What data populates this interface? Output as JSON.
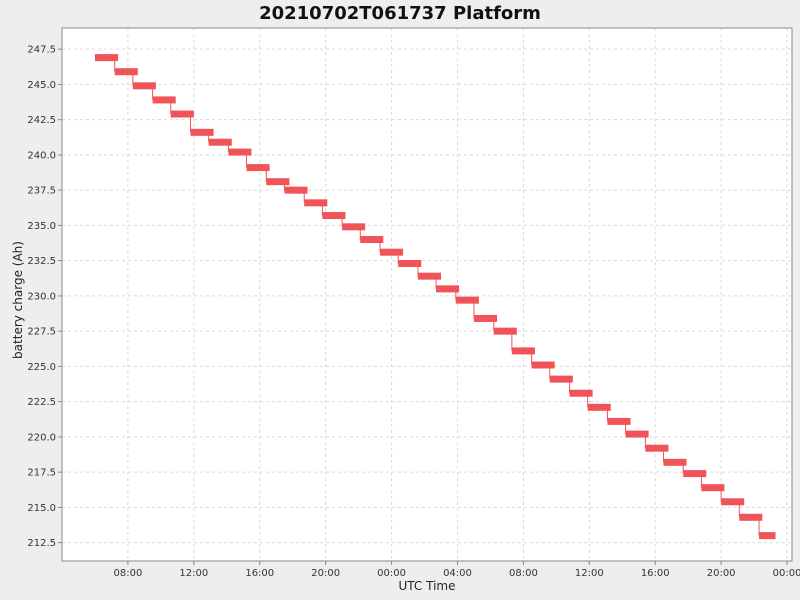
{
  "colors": {
    "page_background": "#eeeeee",
    "plot_background": "#ffffff",
    "grid": "#d9d9d9",
    "series": "#f05458",
    "axis": "#888888"
  },
  "chart_data": {
    "type": "line",
    "title": "20210702T061737 Platform",
    "xlabel": "UTC Time",
    "ylabel": "battery charge (Ah)",
    "grid": true,
    "x_tick_labels": [
      "08:00",
      "12:00",
      "16:00",
      "20:00",
      "00:00",
      "04:00",
      "08:00",
      "12:00",
      "16:00",
      "20:00",
      "00:00"
    ],
    "x_tick_hours": [
      8,
      12,
      16,
      20,
      24,
      28,
      32,
      36,
      40,
      44,
      48
    ],
    "xlim_hours": [
      4,
      48.3
    ],
    "y_ticks": [
      212.5,
      215.0,
      217.5,
      220.0,
      222.5,
      225.0,
      227.5,
      230.0,
      232.5,
      235.0,
      237.5,
      240.0,
      242.5,
      245.0,
      247.5
    ],
    "y_tick_labels": [
      "212.5",
      "215.0",
      "217.5",
      "220.0",
      "222.5",
      "225.0",
      "227.5",
      "230.0",
      "232.5",
      "235.0",
      "237.5",
      "240.0",
      "242.5",
      "245.0",
      "247.5"
    ],
    "ylim": [
      211.2,
      249.0
    ],
    "series": [
      {
        "segments": [
          {
            "start_hours": 6.0,
            "end_hours": 7.4,
            "value": 246.9
          },
          {
            "start_hours": 7.2,
            "end_hours": 8.6,
            "value": 245.9
          },
          {
            "start_hours": 8.3,
            "end_hours": 9.7,
            "value": 244.9
          },
          {
            "start_hours": 9.5,
            "end_hours": 10.9,
            "value": 243.9
          },
          {
            "start_hours": 10.6,
            "end_hours": 12.0,
            "value": 242.9
          },
          {
            "start_hours": 11.8,
            "end_hours": 13.2,
            "value": 241.6
          },
          {
            "start_hours": 12.9,
            "end_hours": 14.3,
            "value": 240.9
          },
          {
            "start_hours": 14.1,
            "end_hours": 15.5,
            "value": 240.2
          },
          {
            "start_hours": 15.2,
            "end_hours": 16.6,
            "value": 239.1
          },
          {
            "start_hours": 16.4,
            "end_hours": 17.8,
            "value": 238.1
          },
          {
            "start_hours": 17.5,
            "end_hours": 18.9,
            "value": 237.5
          },
          {
            "start_hours": 18.7,
            "end_hours": 20.1,
            "value": 236.6
          },
          {
            "start_hours": 19.8,
            "end_hours": 21.2,
            "value": 235.7
          },
          {
            "start_hours": 21.0,
            "end_hours": 22.4,
            "value": 234.9
          },
          {
            "start_hours": 22.1,
            "end_hours": 23.5,
            "value": 234.0
          },
          {
            "start_hours": 23.3,
            "end_hours": 24.7,
            "value": 233.1
          },
          {
            "start_hours": 24.4,
            "end_hours": 25.8,
            "value": 232.3
          },
          {
            "start_hours": 25.6,
            "end_hours": 27.0,
            "value": 231.4
          },
          {
            "start_hours": 26.7,
            "end_hours": 28.1,
            "value": 230.5
          },
          {
            "start_hours": 27.9,
            "end_hours": 29.3,
            "value": 229.7
          },
          {
            "start_hours": 29.0,
            "end_hours": 30.4,
            "value": 228.4
          },
          {
            "start_hours": 30.2,
            "end_hours": 31.6,
            "value": 227.5
          },
          {
            "start_hours": 31.3,
            "end_hours": 32.7,
            "value": 226.1
          },
          {
            "start_hours": 32.5,
            "end_hours": 33.9,
            "value": 225.1
          },
          {
            "start_hours": 33.6,
            "end_hours": 35.0,
            "value": 224.1
          },
          {
            "start_hours": 34.8,
            "end_hours": 36.2,
            "value": 223.1
          },
          {
            "start_hours": 35.9,
            "end_hours": 37.3,
            "value": 222.1
          },
          {
            "start_hours": 37.1,
            "end_hours": 38.5,
            "value": 221.1
          },
          {
            "start_hours": 38.2,
            "end_hours": 39.6,
            "value": 220.2
          },
          {
            "start_hours": 39.4,
            "end_hours": 40.8,
            "value": 219.2
          },
          {
            "start_hours": 40.5,
            "end_hours": 41.9,
            "value": 218.2
          },
          {
            "start_hours": 41.7,
            "end_hours": 43.1,
            "value": 217.4
          },
          {
            "start_hours": 42.8,
            "end_hours": 44.2,
            "value": 216.4
          },
          {
            "start_hours": 44.0,
            "end_hours": 45.4,
            "value": 215.4
          },
          {
            "start_hours": 45.1,
            "end_hours": 46.5,
            "value": 214.3
          },
          {
            "start_hours": 46.3,
            "end_hours": 47.3,
            "value": 213.0
          }
        ]
      }
    ]
  }
}
